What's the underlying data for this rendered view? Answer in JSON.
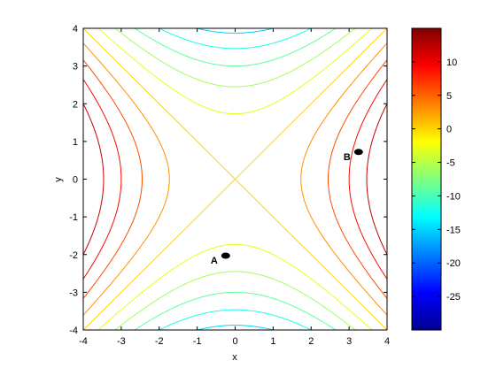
{
  "chart_data": {
    "type": "contour",
    "function": "x^2 - y^2",
    "x_range": [
      -4,
      4
    ],
    "y_range": [
      -4,
      4
    ],
    "xlabel": "x",
    "ylabel": "y",
    "x_ticks": [
      -4,
      -3,
      -2,
      -1,
      0,
      1,
      2,
      3,
      4
    ],
    "y_ticks": [
      -4,
      -3,
      -2,
      -1,
      0,
      1,
      2,
      3,
      4
    ],
    "contour_levels": [
      -15,
      -12,
      -9,
      -6,
      -3,
      0,
      3,
      6,
      9,
      12
    ],
    "colorbar": {
      "colormap": "jet",
      "range": [
        -30,
        15
      ],
      "ticks": [
        10,
        5,
        0,
        -5,
        -10,
        -15,
        -20,
        -25
      ]
    },
    "points": [
      {
        "label": "A",
        "x": -0.25,
        "y": -2.03
      },
      {
        "label": "B",
        "x": 3.25,
        "y": 0.72
      }
    ]
  }
}
